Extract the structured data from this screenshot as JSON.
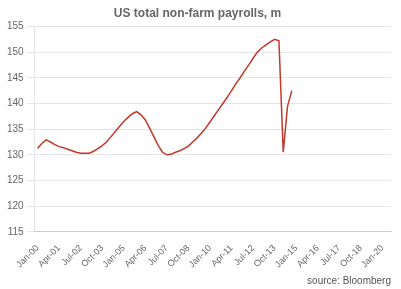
{
  "chart_data": {
    "type": "line",
    "title": "US total non-farm payrolls, m",
    "annotation": "source: Bloomberg",
    "color": "#c0392b",
    "grid": "y",
    "xlim": [
      -2,
      246
    ],
    "xticks": [
      {
        "value": 0,
        "label": "Jan-00"
      },
      {
        "value": 15,
        "label": "Apr-01"
      },
      {
        "value": 30,
        "label": "Jul-02"
      },
      {
        "value": 45,
        "label": "Oct-03"
      },
      {
        "value": 60,
        "label": "Jan-05"
      },
      {
        "value": 75,
        "label": "Apr-06"
      },
      {
        "value": 90,
        "label": "Jul-07"
      },
      {
        "value": 105,
        "label": "Oct-08"
      },
      {
        "value": 120,
        "label": "Jan-10"
      },
      {
        "value": 135,
        "label": "Apr-11"
      },
      {
        "value": 150,
        "label": "Jul-12"
      },
      {
        "value": 165,
        "label": "Oct-13"
      },
      {
        "value": 180,
        "label": "Jan-15"
      },
      {
        "value": 195,
        "label": "Apr-16"
      },
      {
        "value": 210,
        "label": "Jul-17"
      },
      {
        "value": 225,
        "label": "Oct-18"
      },
      {
        "value": 240,
        "label": "Jan-20"
      }
    ],
    "ylim": [
      115,
      155
    ],
    "yticks": [
      115,
      120,
      125,
      130,
      135,
      140,
      145,
      150,
      155
    ],
    "x": [
      0,
      3,
      6,
      9,
      12,
      15,
      18,
      21,
      24,
      27,
      30,
      33,
      36,
      39,
      42,
      45,
      48,
      51,
      54,
      57,
      60,
      63,
      66,
      69,
      72,
      75,
      78,
      81,
      84,
      87,
      90,
      93,
      96,
      99,
      102,
      105,
      108,
      111,
      114,
      117,
      120,
      123,
      126,
      129,
      132,
      135,
      138,
      141,
      144,
      147,
      150,
      153,
      156,
      159,
      162,
      165,
      168,
      171,
      174,
      177
    ],
    "values": [
      131.3,
      132.2,
      132.9,
      132.5,
      132.0,
      131.6,
      131.4,
      131.1,
      130.8,
      130.5,
      130.3,
      130.3,
      130.3,
      130.7,
      131.2,
      131.8,
      132.5,
      133.5,
      134.5,
      135.5,
      136.5,
      137.3,
      138.0,
      138.4,
      137.8,
      136.8,
      135.2,
      133.5,
      131.8,
      130.5,
      130.0,
      130.1,
      130.5,
      130.8,
      131.2,
      131.7,
      132.5,
      133.3,
      134.2,
      135.2,
      136.4,
      137.6,
      138.8,
      140.0,
      141.2,
      142.5,
      143.8,
      145.0,
      146.3,
      147.5,
      148.8,
      150.0,
      150.8,
      151.4,
      152.0,
      152.5,
      152.2,
      130.5,
      139.5,
      142.5
    ]
  }
}
